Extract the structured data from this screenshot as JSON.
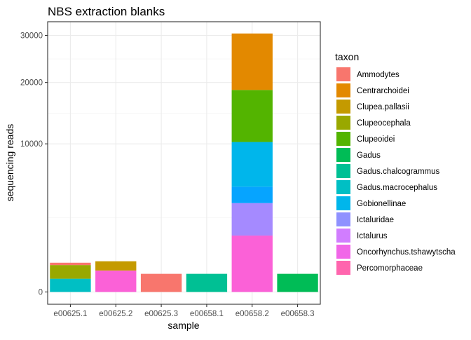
{
  "chart_data": {
    "type": "bar",
    "stacked": true,
    "title": "NBS extraction blanks",
    "xlabel": "sample",
    "ylabel": "sequencing reads",
    "y_scale": "sqrt",
    "ylim": [
      0,
      31500
    ],
    "y_ticks": [
      0,
      10000,
      20000,
      30000
    ],
    "grid": true,
    "legend_title": "taxon",
    "legend_position": "right",
    "categories": [
      "e00625.1",
      "e00625.2",
      "e00625.3",
      "e00658.1",
      "e00658.2",
      "e00658.3"
    ],
    "series": [
      {
        "name": "Ammodytes",
        "color": "#F8766D",
        "values": [
          60,
          0,
          150,
          0,
          0,
          0
        ]
      },
      {
        "name": "Centrarchoidei",
        "color": "#E38900",
        "values": [
          0,
          0,
          0,
          0,
          11850,
          0
        ]
      },
      {
        "name": "Clupea.pallasii",
        "color": "#C49A00",
        "values": [
          0,
          220,
          0,
          0,
          0,
          0
        ]
      },
      {
        "name": "Clupeocephala",
        "color": "#99A800",
        "values": [
          250,
          0,
          0,
          0,
          0,
          0
        ]
      },
      {
        "name": "Clupeoidei",
        "color": "#53B400",
        "values": [
          0,
          0,
          0,
          0,
          8350,
          0
        ]
      },
      {
        "name": "Gadus",
        "color": "#00BC56",
        "values": [
          0,
          0,
          0,
          0,
          0,
          150
        ]
      },
      {
        "name": "Gadus.chalcogrammus",
        "color": "#00C094",
        "values": [
          0,
          0,
          0,
          150,
          0,
          0
        ]
      },
      {
        "name": "Gadus.macrocephalus",
        "color": "#00BFC4",
        "values": [
          80,
          0,
          0,
          0,
          0,
          0
        ]
      },
      {
        "name": "Gobionellinae",
        "color": "#00B6EB",
        "values": [
          0,
          0,
          0,
          0,
          5200,
          0
        ]
      },
      {
        "name": "Ictaluridae",
        "color": "#06A4FF",
        "values": [
          0,
          0,
          0,
          0,
          1450,
          0
        ]
      },
      {
        "name": "Ictalurus",
        "color": "#A58AFF",
        "values": [
          0,
          0,
          0,
          0,
          2150,
          0
        ]
      },
      {
        "name": "Oncorhynchus.tshawytscha",
        "color": "#DF70F8",
        "values": [
          0,
          0,
          0,
          0,
          0,
          0
        ]
      },
      {
        "name": "Percomorphaceae",
        "color": "#FB61D7",
        "values": [
          0,
          210,
          0,
          0,
          1450,
          0
        ]
      }
    ],
    "legend_colors": [
      "#F8766D",
      "#E38900",
      "#C49A00",
      "#99A800",
      "#53B400",
      "#00BC56",
      "#00C094",
      "#00BFC4",
      "#00B6EB",
      "#8F91FF",
      "#D17DFF",
      "#F166E8",
      "#FF65AE"
    ]
  }
}
